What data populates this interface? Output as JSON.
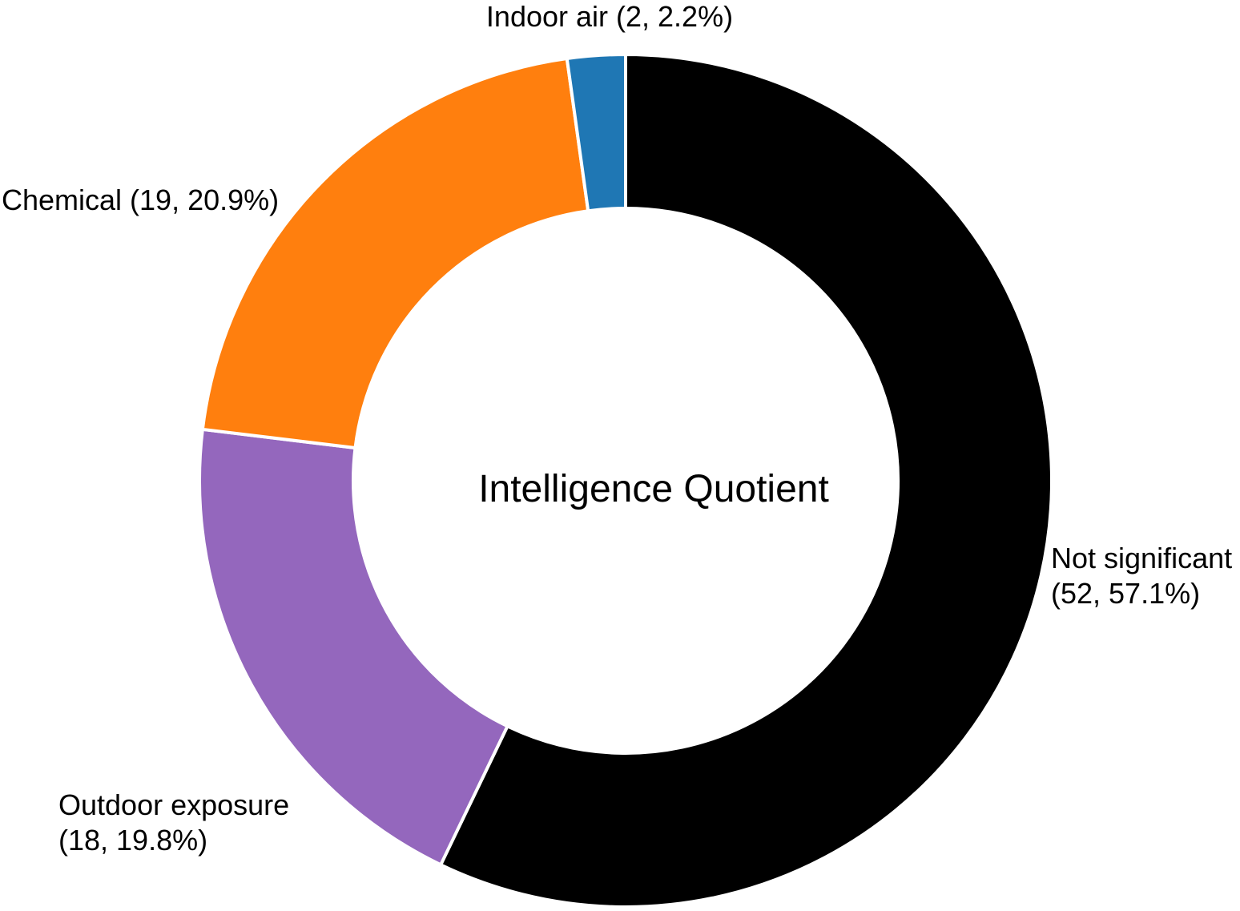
{
  "chart_data": {
    "type": "pie",
    "subtype": "donut",
    "title": "Intelligence Quotient",
    "start_angle": "12 o'clock",
    "direction": "clockwise",
    "slices": [
      {
        "name": "Not significant",
        "value": 52,
        "percent": 57.1,
        "color": "#000000",
        "label_lines": [
          "Not significant",
          "(52, 57.1%)"
        ]
      },
      {
        "name": "Outdoor exposure",
        "value": 18,
        "percent": 19.8,
        "color": "#9467bd",
        "label_lines": [
          "Outdoor exposure",
          "(18, 19.8%)"
        ]
      },
      {
        "name": "Chemical",
        "value": 19,
        "percent": 20.9,
        "color": "#ff7f0e",
        "label_lines": [
          "Chemical (19, 20.9%)"
        ]
      },
      {
        "name": "Indoor air",
        "value": 2,
        "percent": 2.2,
        "color": "#1f77b4",
        "label_lines": [
          "Indoor air (2, 2.2%)"
        ]
      }
    ]
  }
}
